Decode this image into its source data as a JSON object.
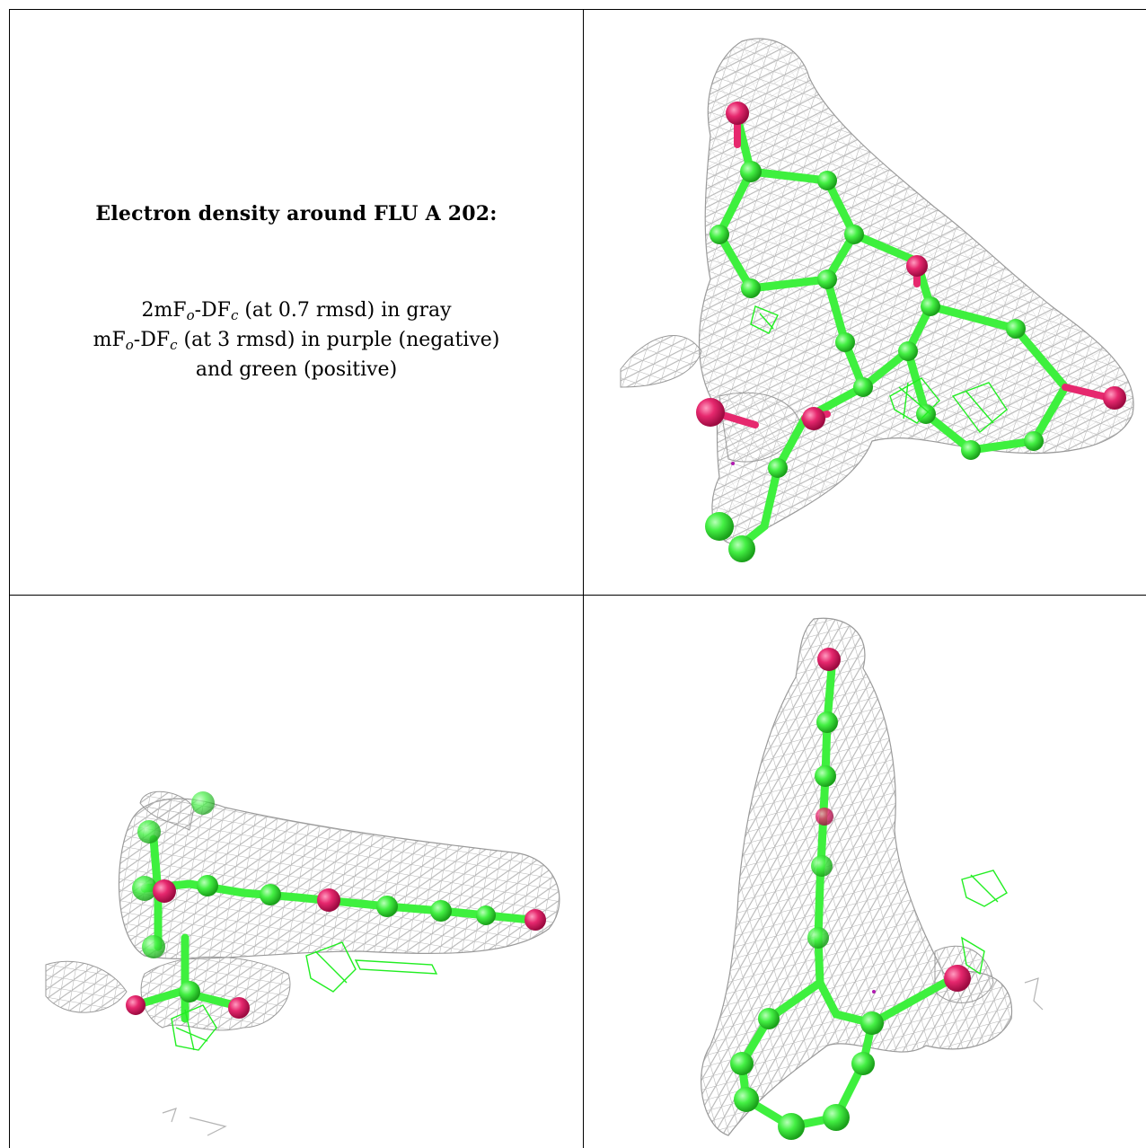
{
  "panel_text": {
    "title": "Electron density around FLU A 202:",
    "map1": {
      "lead": "2mF",
      "sub1": "o",
      "mid": "-DF",
      "sub2": "c",
      "tail": " (at 0.7 rmsd) in gray"
    },
    "map2": {
      "lead": "mF",
      "sub1": "o",
      "mid": "-DF",
      "sub2": "c",
      "tail": " (at 3 rmsd) in purple (negative)"
    },
    "map3": {
      "line": "and green (positive)"
    }
  },
  "colors": {
    "mesh_gray": "#b4b4b4",
    "carbon_green": "#3ef03e",
    "oxygen_pink": "#e6286e",
    "positive_green": "#22ee22",
    "negative_purple": "#b01cb0",
    "grid_line": "#000000"
  },
  "views": {
    "top_right": "view-top-right",
    "bottom_left": "view-bottom-left",
    "bottom_right": "view-bottom-right"
  }
}
